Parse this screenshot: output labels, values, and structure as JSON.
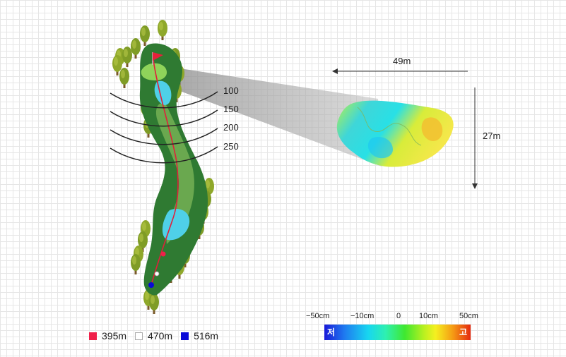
{
  "distance_markers": [
    {
      "label": "100"
    },
    {
      "label": "150"
    },
    {
      "label": "200"
    },
    {
      "label": "250"
    }
  ],
  "green_dimensions": {
    "width": "49m",
    "depth": "27m"
  },
  "tee_legend": [
    {
      "color": "#f0204a",
      "distance": "395m"
    },
    {
      "color": "#ffffff",
      "distance": "470m"
    },
    {
      "color": "#0a0ad8",
      "distance": "516m"
    }
  ],
  "elevation_scale": {
    "ticks": [
      "−50cm",
      "−10cm",
      "0",
      "10cm",
      "50cm"
    ],
    "low_label": "저",
    "high_label": "고"
  },
  "colors": {
    "fairway_dark": "#2f7a32",
    "fairway_light": "#6aa84f",
    "water": "#4fd0e8",
    "flag": "#e8203a",
    "shot_line": "#e0203a"
  }
}
